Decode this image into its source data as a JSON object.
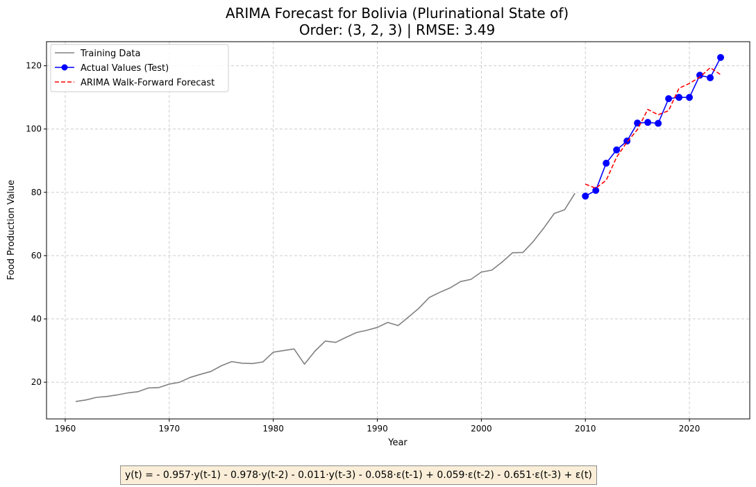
{
  "chart_data": {
    "type": "line",
    "title_line1": "ARIMA Forecast for Bolivia (Plurinational State of)",
    "title_line2": "Order: (3, 2, 3) | RMSE: 3.49",
    "xlabel": "Year",
    "ylabel": "Food Production Value",
    "xlim": [
      1958.2,
      2025.8
    ],
    "ylim": [
      8.4,
      127.6
    ],
    "xticks": [
      1960,
      1970,
      1980,
      1990,
      2000,
      2010,
      2020
    ],
    "yticks": [
      20,
      40,
      60,
      80,
      100,
      120
    ],
    "grid": true,
    "legend_position": "upper-left",
    "series": [
      {
        "name": "Training Data",
        "color": "#808080",
        "style": "solid",
        "marker": "none",
        "x": [
          1961,
          1962,
          1963,
          1964,
          1965,
          1966,
          1967,
          1968,
          1969,
          1970,
          1971,
          1972,
          1973,
          1974,
          1975,
          1976,
          1977,
          1978,
          1979,
          1980,
          1981,
          1982,
          1983,
          1984,
          1985,
          1986,
          1987,
          1988,
          1989,
          1990,
          1991,
          1992,
          1993,
          1994,
          1995,
          1996,
          1997,
          1998,
          1999,
          2000,
          2001,
          2002,
          2003,
          2004,
          2005,
          2006,
          2007,
          2008,
          2009
        ],
        "y": [
          13.9,
          14.4,
          15.2,
          15.5,
          16.0,
          16.6,
          17.0,
          18.2,
          18.3,
          19.4,
          20.0,
          21.5,
          22.5,
          23.4,
          25.2,
          26.5,
          26.0,
          25.9,
          26.4,
          29.5,
          30.0,
          30.5,
          25.7,
          29.8,
          33.0,
          32.6,
          34.2,
          35.7,
          36.4,
          37.3,
          38.9,
          37.9,
          40.6,
          43.4,
          46.8,
          48.4,
          49.8,
          51.8,
          52.5,
          54.8,
          55.4,
          58.0,
          60.9,
          61.0,
          64.5,
          68.7,
          73.3,
          74.5,
          79.7
        ]
      },
      {
        "name": "Actual Values (Test)",
        "color": "#0000ff",
        "style": "solid",
        "marker": "circle",
        "x": [
          2010,
          2011,
          2012,
          2013,
          2014,
          2015,
          2016,
          2017,
          2018,
          2019,
          2020,
          2021,
          2022,
          2023
        ],
        "y": [
          78.8,
          80.6,
          89.2,
          93.4,
          96.2,
          101.9,
          102.1,
          101.8,
          109.6,
          110.0,
          110.0,
          117.0,
          116.2,
          122.6
        ]
      },
      {
        "name": "ARIMA Walk-Forward Forecast",
        "color": "#ff0000",
        "style": "dashed",
        "marker": "none",
        "x": [
          2010,
          2011,
          2012,
          2013,
          2014,
          2015,
          2016,
          2017,
          2018,
          2019,
          2020,
          2021,
          2022,
          2023
        ],
        "y": [
          82.6,
          81.3,
          83.8,
          91.1,
          95.9,
          99.8,
          106.2,
          104.5,
          105.8,
          112.9,
          114.4,
          116.4,
          119.4,
          117.2
        ]
      }
    ]
  },
  "equation": "y(t) = - 0.957·y(t-1) - 0.978·y(t-2) - 0.011·y(t-3) - 0.058·ε(t-1) + 0.059·ε(t-2) - 0.651·ε(t-3) + ε(t)"
}
